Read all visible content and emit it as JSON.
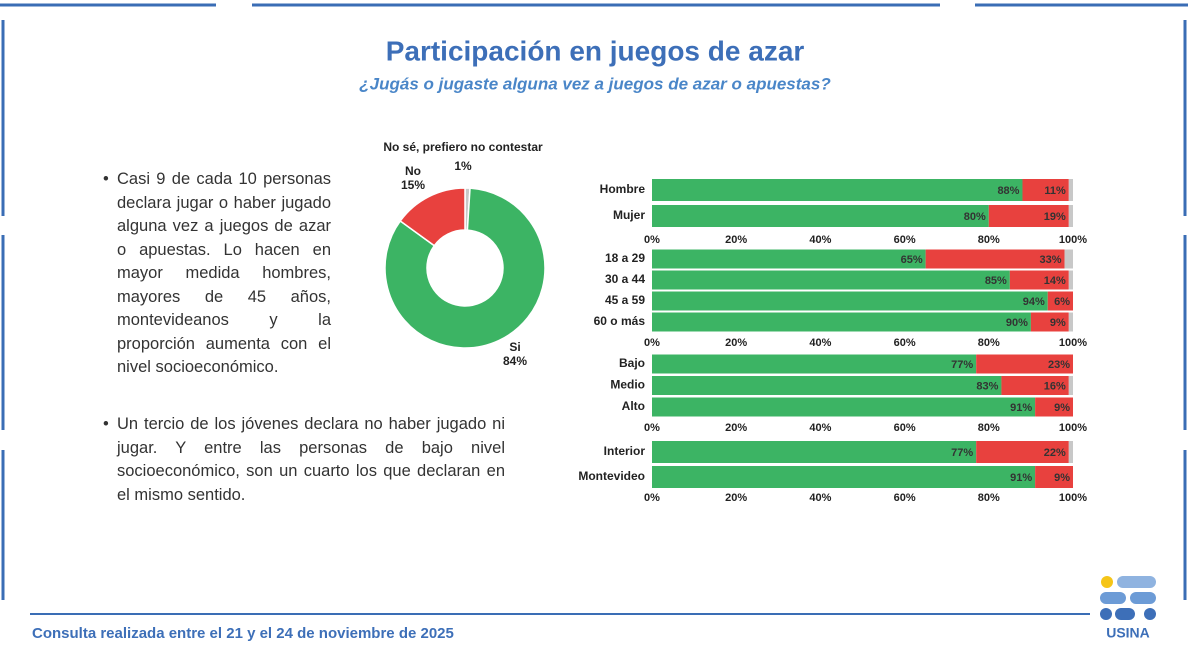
{
  "header": {
    "title": "Participación en juegos de azar",
    "subtitle": "¿Jugás o jugaste alguna vez a juegos de azar o apuestas?"
  },
  "bullets": [
    "Casi 9 de cada 10 personas declara jugar o haber jugado alguna vez a juegos de azar o apuestas. Lo hacen en mayor medida hombres, mayores de 45 años, montevideanos y la proporción aumenta con el nivel socioeconómico.",
    "Un tercio de los jóvenes declara no haber jugado ni jugar. Y entre las personas de bajo nivel socioeconómico, son un cuarto los que declaran en el mismo sentido."
  ],
  "footer": {
    "note": "Consulta realizada entre el 21 y el 24 de noviembre de 2025",
    "logo": "USINA"
  },
  "chart_data": [
    {
      "type": "donut",
      "categories": [
        "Si",
        "No",
        "No sé, prefiero no contestar"
      ],
      "values": [
        84,
        15,
        1
      ],
      "value_labels": [
        "84%",
        "15%",
        "1%"
      ],
      "colors": [
        "#3cb464",
        "#e8413e",
        "#c8c8c8"
      ]
    },
    {
      "type": "bar",
      "orientation": "horizontal",
      "stacked": true,
      "categories": [
        "Hombre",
        "Mujer"
      ],
      "series": [
        {
          "color": "#3cb464",
          "values": [
            88,
            80
          ],
          "value_labels": [
            "88%",
            "80%"
          ]
        },
        {
          "color": "#e8413e",
          "values": [
            11,
            19
          ],
          "value_labels": [
            "11%",
            "19%"
          ]
        },
        {
          "color": "#c8c8c8",
          "values": [
            1,
            1
          ]
        }
      ],
      "xlim": [
        0,
        100
      ],
      "xticks": [
        {
          "value": 0,
          "label": "0%"
        },
        {
          "value": 20,
          "label": "20%"
        },
        {
          "value": 40,
          "label": "40%"
        },
        {
          "value": 60,
          "label": "60%"
        },
        {
          "value": 80,
          "label": "80%"
        },
        {
          "value": 100,
          "label": "100%"
        }
      ]
    },
    {
      "type": "bar",
      "orientation": "horizontal",
      "stacked": true,
      "categories": [
        "18 a 29",
        "30 a 44",
        "45 a 59",
        "60 o más"
      ],
      "series": [
        {
          "color": "#3cb464",
          "values": [
            65,
            85,
            94,
            90
          ],
          "value_labels": [
            "65%",
            "85%",
            "94%",
            "90%"
          ]
        },
        {
          "color": "#e8413e",
          "values": [
            33,
            14,
            6,
            9
          ],
          "value_labels": [
            "33%",
            "14%",
            "6%",
            "9%"
          ]
        },
        {
          "color": "#c8c8c8",
          "values": [
            2,
            1,
            0,
            1
          ]
        }
      ],
      "xlim": [
        0,
        100
      ],
      "xticks": [
        {
          "value": 0,
          "label": "0%"
        },
        {
          "value": 20,
          "label": "20%"
        },
        {
          "value": 40,
          "label": "40%"
        },
        {
          "value": 60,
          "label": "60%"
        },
        {
          "value": 80,
          "label": "80%"
        },
        {
          "value": 100,
          "label": "100%"
        }
      ]
    },
    {
      "type": "bar",
      "orientation": "horizontal",
      "stacked": true,
      "categories": [
        "Bajo",
        "Medio",
        "Alto"
      ],
      "series": [
        {
          "color": "#3cb464",
          "values": [
            77,
            83,
            91
          ],
          "value_labels": [
            "77%",
            "83%",
            "91%"
          ]
        },
        {
          "color": "#e8413e",
          "values": [
            23,
            16,
            9
          ],
          "value_labels": [
            "23%",
            "16%",
            "9%"
          ]
        },
        {
          "color": "#c8c8c8",
          "values": [
            0,
            1,
            0
          ]
        }
      ],
      "xlim": [
        0,
        100
      ],
      "xticks": [
        {
          "value": 0,
          "label": "0%"
        },
        {
          "value": 20,
          "label": "20%"
        },
        {
          "value": 40,
          "label": "40%"
        },
        {
          "value": 60,
          "label": "60%"
        },
        {
          "value": 80,
          "label": "80%"
        },
        {
          "value": 100,
          "label": "100%"
        }
      ]
    },
    {
      "type": "bar",
      "orientation": "horizontal",
      "stacked": true,
      "categories": [
        "Interior",
        "Montevideo"
      ],
      "series": [
        {
          "color": "#3cb464",
          "values": [
            77,
            91
          ],
          "value_labels": [
            "77%",
            "91%"
          ]
        },
        {
          "color": "#e8413e",
          "values": [
            22,
            9
          ],
          "value_labels": [
            "22%",
            "9%"
          ]
        },
        {
          "color": "#c8c8c8",
          "values": [
            1,
            0
          ]
        }
      ],
      "xlim": [
        0,
        100
      ],
      "xticks": [
        {
          "value": 0,
          "label": "0%"
        },
        {
          "value": 20,
          "label": "20%"
        },
        {
          "value": 40,
          "label": "40%"
        },
        {
          "value": 60,
          "label": "60%"
        },
        {
          "value": 80,
          "label": "80%"
        },
        {
          "value": 100,
          "label": "100%"
        }
      ]
    }
  ]
}
